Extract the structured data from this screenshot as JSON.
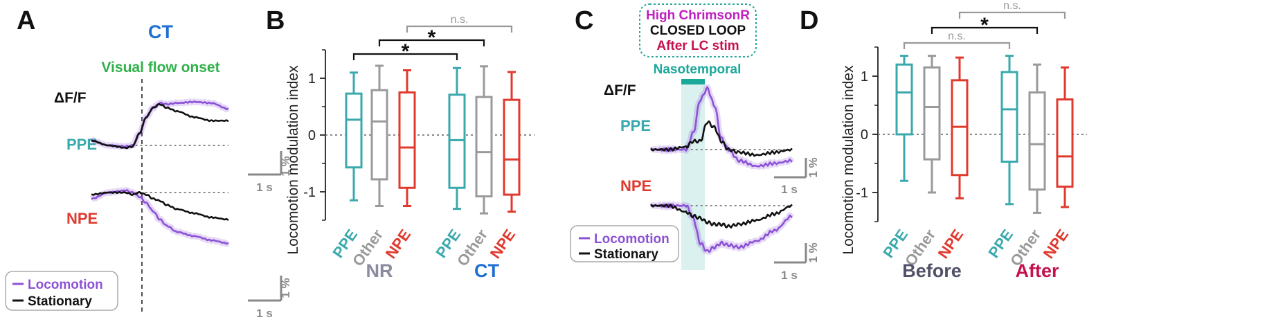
{
  "panels": {
    "A": {
      "letter": "A",
      "title": "CT",
      "onset_label": "Visual flow onset",
      "dff_label": "ΔF/F",
      "row1": "PPE",
      "row2": "NPE",
      "scale_y": "1 %",
      "scale_x": "1 s",
      "legend": [
        "Locomotion",
        "Stationary"
      ]
    },
    "B": {
      "letter": "B",
      "ylabel": "Locomotion modulation index",
      "yticks": [
        "1",
        "0",
        "-1"
      ],
      "groups": [
        "NR",
        "CT"
      ],
      "categories": [
        "PPE",
        "Other",
        "NPE",
        "PPE",
        "Other",
        "NPE"
      ],
      "sig": [
        "*",
        "*",
        "n.s."
      ]
    },
    "C": {
      "letter": "C",
      "box_lines": [
        "High ChrimsonR",
        "CLOSED LOOP",
        "After LC stim"
      ],
      "stim_label": "Nasotemporal",
      "dff_label": "ΔF/F",
      "row1": "PPE",
      "row2": "NPE",
      "scale_y": "1 %",
      "scale_x": "1 s",
      "legend": [
        "Locomotion",
        "Stationary"
      ]
    },
    "D": {
      "letter": "D",
      "ylabel": "Locomotion modulation index",
      "yticks": [
        "1",
        "0",
        "-1"
      ],
      "groups": [
        "Before",
        "After"
      ],
      "categories": [
        "PPE",
        "Other",
        "NPE",
        "PPE",
        "Other",
        "NPE"
      ],
      "sig": [
        "n.s.",
        "*",
        "n.s."
      ]
    }
  },
  "colors": {
    "ppe": "#3aa9ad",
    "other": "#9a9a9a",
    "npe": "#e0392e",
    "locomotion": "#8c52d6",
    "stationary": "#111111",
    "ct": "#1f6fd1",
    "nr": "#8a8aa0",
    "before": "#505068",
    "after": "#c4124e",
    "onset": "#2fb14a",
    "chrimson": "#c020c0",
    "afterlc": "#c4124e",
    "stim": "#1aa89a"
  },
  "chart_data": [
    {
      "type": "line",
      "panel": "A",
      "title": "CT",
      "x_unit": "s",
      "y_unit": "%",
      "rows": [
        {
          "name": "PPE",
          "x": [
            -1,
            -0.5,
            0,
            0.2,
            0.4,
            0.6,
            0.8,
            1.0,
            1.2,
            1.5,
            2.0,
            2.5,
            3.0
          ],
          "series": [
            {
              "name": "Locomotion",
              "values": [
                0.2,
                0.0,
                -0.05,
                0.0,
                0.5,
                1.2,
                1.6,
                1.8,
                1.75,
                1.8,
                1.85,
                1.8,
                1.55
              ]
            },
            {
              "name": "Stationary",
              "values": [
                0.2,
                0.0,
                -0.1,
                -0.05,
                0.5,
                1.2,
                1.6,
                1.75,
                1.6,
                1.45,
                1.2,
                1.05,
                1.05
              ]
            }
          ]
        },
        {
          "name": "NPE",
          "x": [
            -1,
            -0.5,
            0,
            0.2,
            0.4,
            0.6,
            0.8,
            1.0,
            1.2,
            1.5,
            2.0,
            2.5,
            3.0
          ],
          "series": [
            {
              "name": "Locomotion",
              "values": [
                -0.3,
                0.0,
                0.1,
                0.0,
                -0.2,
                -0.5,
                -0.9,
                -1.3,
                -1.6,
                -1.9,
                -2.1,
                -2.3,
                -2.45
              ]
            },
            {
              "name": "Stationary",
              "values": [
                -0.1,
                0.0,
                0.0,
                -0.1,
                0.0,
                -0.1,
                -0.3,
                -0.4,
                -0.6,
                -0.8,
                -1.0,
                -1.2,
                -1.3
              ]
            }
          ]
        }
      ]
    },
    {
      "type": "box",
      "panel": "B",
      "ylabel": "Locomotion modulation index",
      "ylim": [
        -1.5,
        1.5
      ],
      "groups": [
        "NR",
        "CT"
      ],
      "categories": [
        "PPE",
        "Other",
        "NPE",
        "PPE",
        "Other",
        "NPE"
      ],
      "boxes": [
        {
          "min": -1.15,
          "q1": -0.57,
          "median": 0.27,
          "q3": 0.73,
          "max": 1.1
        },
        {
          "min": -1.25,
          "q1": -0.78,
          "median": 0.24,
          "q3": 0.79,
          "max": 1.22
        },
        {
          "min": -1.25,
          "q1": -0.93,
          "median": -0.22,
          "q3": 0.75,
          "max": 1.14
        },
        {
          "min": -1.3,
          "q1": -0.93,
          "median": -0.09,
          "q3": 0.71,
          "max": 1.18
        },
        {
          "min": -1.38,
          "q1": -1.08,
          "median": -0.3,
          "q3": 0.67,
          "max": 1.21
        },
        {
          "min": -1.35,
          "q1": -1.05,
          "median": -0.43,
          "q3": 0.62,
          "max": 1.11
        }
      ],
      "comparisons": [
        {
          "from": 0,
          "to": 3,
          "label": "*"
        },
        {
          "from": 1,
          "to": 4,
          "label": "*"
        },
        {
          "from": 2,
          "to": 5,
          "label": "n.s."
        }
      ]
    },
    {
      "type": "line",
      "panel": "C",
      "stim_label": "Nasotemporal",
      "x_unit": "s",
      "y_unit": "%",
      "rows": [
        {
          "name": "PPE",
          "x": [
            -1,
            -0.5,
            0,
            0.2,
            0.4,
            0.6,
            0.8,
            1.0,
            1.2,
            1.5,
            2.0,
            2.5,
            3.0
          ],
          "series": [
            {
              "name": "Locomotion",
              "values": [
                0.0,
                0.0,
                0.0,
                0.6,
                1.8,
                2.2,
                1.6,
                0.4,
                0.0,
                -0.4,
                -0.6,
                -0.5,
                -0.4
              ]
            },
            {
              "name": "Stationary",
              "values": [
                0.0,
                0.0,
                0.1,
                0.3,
                0.3,
                1.0,
                0.8,
                0.3,
                0.0,
                -0.1,
                -0.2,
                -0.1,
                0.0
              ]
            }
          ]
        },
        {
          "name": "NPE",
          "x": [
            -1,
            -0.5,
            0,
            0.2,
            0.4,
            0.6,
            0.8,
            1.0,
            1.2,
            1.5,
            2.0,
            2.5,
            3.0
          ],
          "series": [
            {
              "name": "Locomotion",
              "values": [
                0.0,
                0.0,
                0.0,
                -0.6,
                -1.8,
                -2.2,
                -2.0,
                -1.8,
                -1.9,
                -2.0,
                -1.7,
                -1.2,
                -0.5
              ]
            },
            {
              "name": "Stationary",
              "values": [
                0.0,
                0.0,
                -0.3,
                -0.5,
                -0.6,
                -0.8,
                -0.9,
                -0.9,
                -1.0,
                -0.9,
                -0.7,
                -0.4,
                0.0
              ]
            }
          ]
        }
      ]
    },
    {
      "type": "box",
      "panel": "D",
      "ylabel": "Locomotion modulation index",
      "ylim": [
        -1.5,
        1.5
      ],
      "groups": [
        "Before",
        "After"
      ],
      "categories": [
        "PPE",
        "Other",
        "NPE",
        "PPE",
        "Other",
        "NPE"
      ],
      "boxes": [
        {
          "min": -0.8,
          "q1": 0.0,
          "median": 0.72,
          "q3": 1.2,
          "max": 1.35
        },
        {
          "min": -1.0,
          "q1": -0.43,
          "median": 0.47,
          "q3": 1.15,
          "max": 1.35
        },
        {
          "min": -1.1,
          "q1": -0.7,
          "median": 0.13,
          "q3": 0.93,
          "max": 1.32
        },
        {
          "min": -1.2,
          "q1": -0.47,
          "median": 0.43,
          "q3": 1.07,
          "max": 1.35
        },
        {
          "min": -1.35,
          "q1": -0.95,
          "median": -0.17,
          "q3": 0.72,
          "max": 1.2
        },
        {
          "min": -1.25,
          "q1": -0.9,
          "median": -0.38,
          "q3": 0.6,
          "max": 1.15
        }
      ],
      "comparisons": [
        {
          "from": 0,
          "to": 3,
          "label": "n.s."
        },
        {
          "from": 1,
          "to": 4,
          "label": "*"
        },
        {
          "from": 2,
          "to": 5,
          "label": "n.s."
        }
      ]
    }
  ]
}
